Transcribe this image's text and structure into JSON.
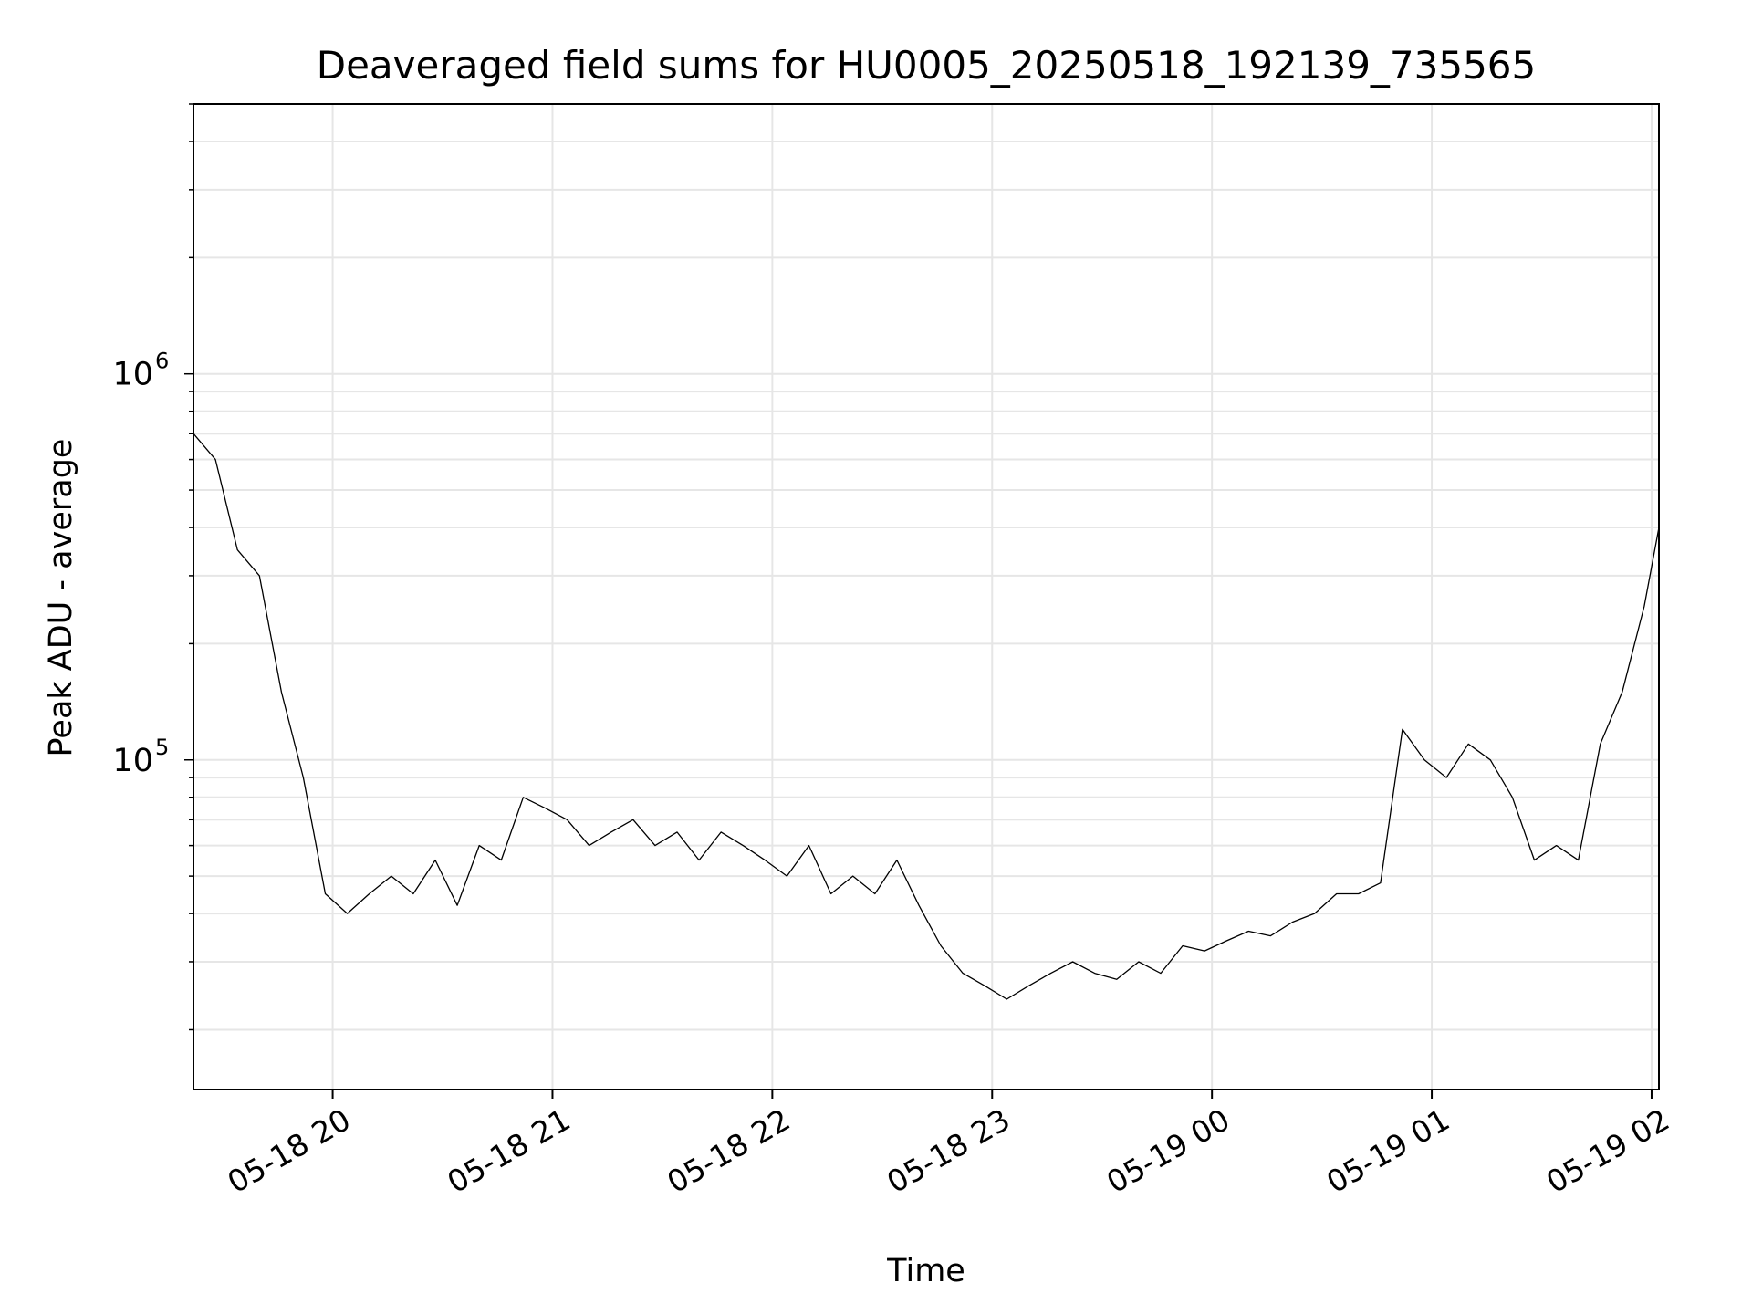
{
  "chart_data": {
    "type": "line",
    "title": "Deaveraged field sums for HU0005_20250518_192139_735565",
    "xlabel": "Time",
    "ylabel": "Peak ADU - average",
    "y_scale": "log",
    "ylim": [
      14000,
      5000000
    ],
    "xlim": [
      "2025-05-18 19:22",
      "2025-05-19 02:02"
    ],
    "x_ticks": [
      "05-18 20",
      "05-18 21",
      "05-18 22",
      "05-18 23",
      "05-19 00",
      "05-19 01",
      "05-19 02"
    ],
    "y_ticks": [
      {
        "base": "10",
        "exp": "5",
        "value": 100000
      },
      {
        "base": "10",
        "exp": "6",
        "value": 1000000
      }
    ],
    "grid": true,
    "line_color": "#000000",
    "grid_color": "#e6e6e6",
    "series": [
      {
        "x": [
          "2025-05-18 19:22",
          "2025-05-18 19:28",
          "2025-05-18 19:34",
          "2025-05-18 19:40",
          "2025-05-18 19:46",
          "2025-05-18 19:52",
          "2025-05-18 19:58",
          "2025-05-18 20:04",
          "2025-05-18 20:10",
          "2025-05-18 20:16",
          "2025-05-18 20:22",
          "2025-05-18 20:28",
          "2025-05-18 20:34",
          "2025-05-18 20:40",
          "2025-05-18 20:46",
          "2025-05-18 20:52",
          "2025-05-18 20:58",
          "2025-05-18 21:04",
          "2025-05-18 21:10",
          "2025-05-18 21:16",
          "2025-05-18 21:22",
          "2025-05-18 21:28",
          "2025-05-18 21:34",
          "2025-05-18 21:40",
          "2025-05-18 21:46",
          "2025-05-18 21:52",
          "2025-05-18 21:58",
          "2025-05-18 22:04",
          "2025-05-18 22:10",
          "2025-05-18 22:16",
          "2025-05-18 22:22",
          "2025-05-18 22:28",
          "2025-05-18 22:34",
          "2025-05-18 22:40",
          "2025-05-18 22:46",
          "2025-05-18 22:52",
          "2025-05-18 22:58",
          "2025-05-18 23:04",
          "2025-05-18 23:10",
          "2025-05-18 23:16",
          "2025-05-18 23:22",
          "2025-05-18 23:28",
          "2025-05-18 23:34",
          "2025-05-18 23:40",
          "2025-05-18 23:46",
          "2025-05-18 23:52",
          "2025-05-18 23:58",
          "2025-05-19 00:04",
          "2025-05-19 00:10",
          "2025-05-19 00:16",
          "2025-05-19 00:22",
          "2025-05-19 00:28",
          "2025-05-19 00:34",
          "2025-05-19 00:40",
          "2025-05-19 00:46",
          "2025-05-19 00:52",
          "2025-05-19 00:58",
          "2025-05-19 01:04",
          "2025-05-19 01:10",
          "2025-05-19 01:16",
          "2025-05-19 01:22",
          "2025-05-19 01:28",
          "2025-05-19 01:34",
          "2025-05-19 01:40",
          "2025-05-19 01:46",
          "2025-05-19 01:52",
          "2025-05-19 01:58",
          "2025-05-19 02:02"
        ],
        "y": [
          700000,
          600000,
          350000,
          300000,
          150000,
          90000,
          45000,
          40000,
          45000,
          50000,
          45000,
          55000,
          42000,
          60000,
          55000,
          80000,
          75000,
          70000,
          60000,
          65000,
          70000,
          60000,
          65000,
          55000,
          65000,
          60000,
          55000,
          50000,
          60000,
          45000,
          50000,
          45000,
          55000,
          42000,
          33000,
          28000,
          26000,
          24000,
          26000,
          28000,
          30000,
          28000,
          27000,
          30000,
          28000,
          33000,
          32000,
          34000,
          36000,
          35000,
          38000,
          40000,
          45000,
          45000,
          48000,
          120000,
          100000,
          90000,
          110000,
          100000,
          80000,
          55000,
          60000,
          55000,
          110000,
          150000,
          250000,
          400000
        ]
      }
    ]
  }
}
